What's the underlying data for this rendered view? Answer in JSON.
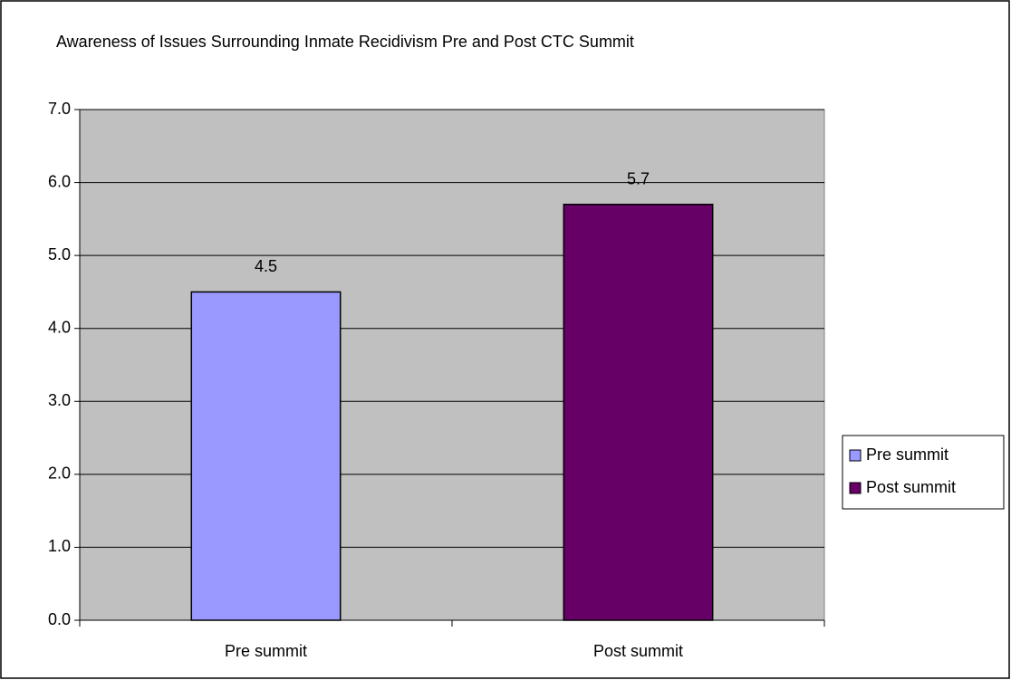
{
  "chart_data": {
    "type": "bar",
    "title": "Awareness of Issues Surrounding Inmate Recidivism Pre and Post CTC Summit",
    "categories": [
      "Pre summit",
      "Post summit"
    ],
    "values": [
      4.5,
      5.7
    ],
    "colors": [
      "#9999ff",
      "#660066"
    ],
    "ylim": [
      0,
      7
    ],
    "yticks": [
      {
        "value": 0,
        "label": "0.0"
      },
      {
        "value": 1,
        "label": "1.0"
      },
      {
        "value": 2,
        "label": "2.0"
      },
      {
        "value": 3,
        "label": "3.0"
      },
      {
        "value": 4,
        "label": "4.0"
      },
      {
        "value": 5,
        "label": "5.0"
      },
      {
        "value": 6,
        "label": "6.0"
      },
      {
        "value": 7,
        "label": "7.0"
      }
    ],
    "grid": true,
    "legend": "right"
  }
}
